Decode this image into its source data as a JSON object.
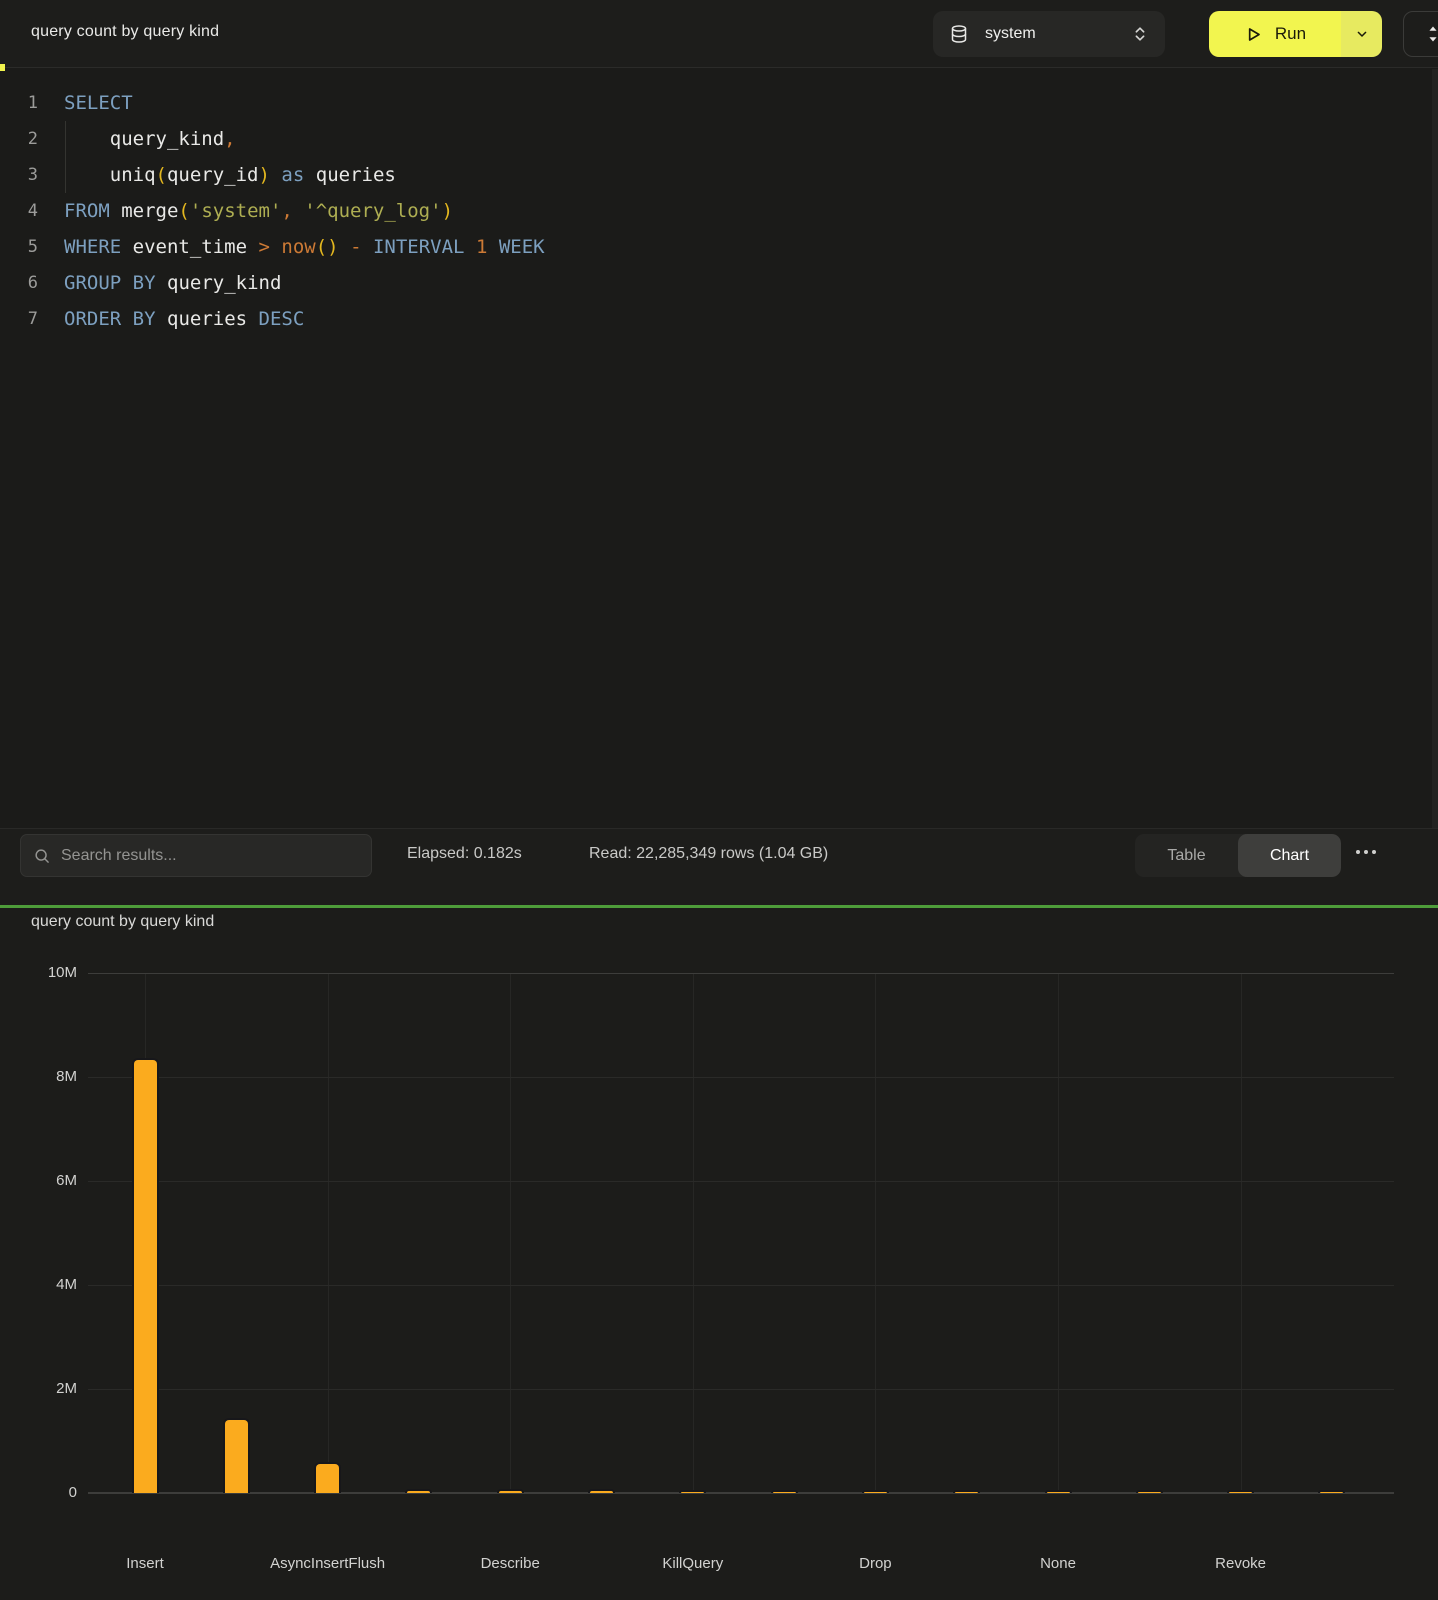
{
  "header": {
    "title": "query count by query kind",
    "database_selector": {
      "icon": "database-icon",
      "value": "system",
      "chevron": "chevrons-up-down-icon"
    },
    "run_button": {
      "icon": "play-icon",
      "label": "Run",
      "dropdown_icon": "chevron-down-icon",
      "accent_color": "#f2f54f"
    },
    "expand_button": {
      "icon": "collapse-arrows-icon"
    }
  },
  "editor": {
    "lines": [
      {
        "n": 1,
        "tokens": [
          {
            "t": "SELECT",
            "c": "kw"
          }
        ]
      },
      {
        "n": 2,
        "tokens": [
          {
            "t": "    ",
            "c": "id"
          },
          {
            "t": "query_kind",
            "c": "id"
          },
          {
            "t": ",",
            "c": "op"
          }
        ]
      },
      {
        "n": 3,
        "tokens": [
          {
            "t": "    ",
            "c": "id"
          },
          {
            "t": "uniq",
            "c": "id"
          },
          {
            "t": "(",
            "c": "par"
          },
          {
            "t": "query_id",
            "c": "id"
          },
          {
            "t": ")",
            "c": "par"
          },
          {
            "t": " ",
            "c": "id"
          },
          {
            "t": "as",
            "c": "kw"
          },
          {
            "t": " ",
            "c": "id"
          },
          {
            "t": "queries",
            "c": "id"
          }
        ]
      },
      {
        "n": 4,
        "tokens": [
          {
            "t": "FROM",
            "c": "kw"
          },
          {
            "t": " ",
            "c": "id"
          },
          {
            "t": "merge",
            "c": "id"
          },
          {
            "t": "(",
            "c": "par"
          },
          {
            "t": "'system'",
            "c": "str"
          },
          {
            "t": ",",
            "c": "op"
          },
          {
            "t": " ",
            "c": "id"
          },
          {
            "t": "'^query_log'",
            "c": "str"
          },
          {
            "t": ")",
            "c": "par"
          }
        ]
      },
      {
        "n": 5,
        "tokens": [
          {
            "t": "WHERE",
            "c": "kw"
          },
          {
            "t": " ",
            "c": "id"
          },
          {
            "t": "event_time",
            "c": "id"
          },
          {
            "t": " ",
            "c": "id"
          },
          {
            "t": ">",
            "c": "op"
          },
          {
            "t": " ",
            "c": "id"
          },
          {
            "t": "now",
            "c": "op"
          },
          {
            "t": "()",
            "c": "par"
          },
          {
            "t": " ",
            "c": "id"
          },
          {
            "t": "-",
            "c": "op"
          },
          {
            "t": " ",
            "c": "id"
          },
          {
            "t": "INTERVAL",
            "c": "kw"
          },
          {
            "t": " ",
            "c": "id"
          },
          {
            "t": "1",
            "c": "op"
          },
          {
            "t": " ",
            "c": "id"
          },
          {
            "t": "WEEK",
            "c": "kw"
          }
        ]
      },
      {
        "n": 6,
        "tokens": [
          {
            "t": "GROUP",
            "c": "kw"
          },
          {
            "t": " ",
            "c": "id"
          },
          {
            "t": "BY",
            "c": "kw"
          },
          {
            "t": " ",
            "c": "id"
          },
          {
            "t": "query_kind",
            "c": "id"
          }
        ]
      },
      {
        "n": 7,
        "tokens": [
          {
            "t": "ORDER",
            "c": "kw"
          },
          {
            "t": " ",
            "c": "id"
          },
          {
            "t": "BY",
            "c": "kw"
          },
          {
            "t": " ",
            "c": "id"
          },
          {
            "t": "queries",
            "c": "id"
          },
          {
            "t": " ",
            "c": "id"
          },
          {
            "t": "DESC",
            "c": "kw"
          }
        ]
      }
    ]
  },
  "toolbar": {
    "search": {
      "icon": "search-icon",
      "placeholder": "Search results...",
      "value": ""
    },
    "elapsed": "Elapsed: 0.182s",
    "read": "Read: 22,285,349 rows (1.04 GB)",
    "view_toggle": {
      "table_label": "Table",
      "chart_label": "Chart",
      "active": "Chart"
    },
    "more_menu_icon": "ellipsis-icon"
  },
  "divider_color": "#4e9c3a",
  "chart_data": {
    "type": "bar",
    "title": "query count by query kind",
    "xlabel": "",
    "ylabel": "",
    "categories": [
      "Insert",
      "",
      "AsyncInsertFlush",
      "",
      "Describe",
      "",
      "KillQuery",
      "",
      "Drop",
      "",
      "None",
      "",
      "Revoke",
      ""
    ],
    "values": [
      8370000,
      1440000,
      600000,
      80000,
      74000,
      68000,
      63000,
      58000,
      54000,
      50000,
      47000,
      44000,
      41000,
      38000
    ],
    "ylim": [
      0,
      10000000
    ],
    "yticks": [
      {
        "value": 0,
        "label": "0"
      },
      {
        "value": 2000000,
        "label": "2M"
      },
      {
        "value": 4000000,
        "label": "4M"
      },
      {
        "value": 6000000,
        "label": "6M"
      },
      {
        "value": 8000000,
        "label": "8M"
      },
      {
        "value": 10000000,
        "label": "10M"
      }
    ],
    "bar_color": "#fbab1e",
    "grid": true,
    "legend": false
  }
}
